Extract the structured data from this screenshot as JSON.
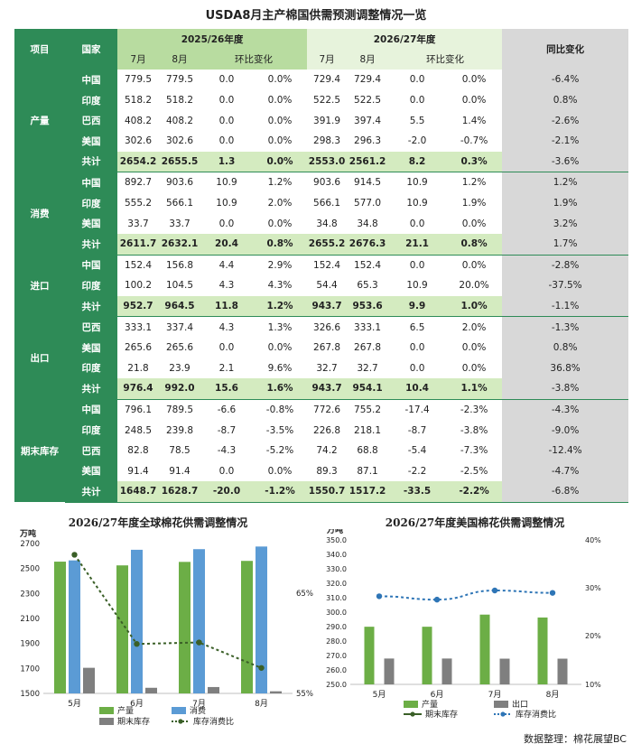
{
  "title": "USDA8月主产棉国供需预测调整情况一览",
  "table": {
    "col_item": "项目",
    "col_country": "国家",
    "period1": "2025/26年度",
    "period2": "2026/27年度",
    "yoy": "同比变化",
    "sub": [
      "7月",
      "8月",
      "环比变化",
      "7月",
      "8月",
      "环比变化"
    ],
    "groups": [
      {
        "name": "产量",
        "rows": [
          {
            "c": "中国",
            "v": [
              "779.5",
              "779.5",
              "0.0",
              "0.0%",
              "729.4",
              "729.4",
              "0.0",
              "0.0%",
              "-6.4%"
            ]
          },
          {
            "c": "印度",
            "v": [
              "518.2",
              "518.2",
              "0.0",
              "0.0%",
              "522.5",
              "522.5",
              "0.0",
              "0.0%",
              "0.8%"
            ]
          },
          {
            "c": "巴西",
            "v": [
              "408.2",
              "408.2",
              "0.0",
              "0.0%",
              "391.9",
              "397.4",
              "5.5",
              "1.4%",
              "-2.6%"
            ]
          },
          {
            "c": "美国",
            "v": [
              "302.6",
              "302.6",
              "0.0",
              "0.0%",
              "298.3",
              "296.3",
              "-2.0",
              "-0.7%",
              "-2.1%"
            ]
          },
          {
            "c": "共计",
            "v": [
              "2654.2",
              "2655.5",
              "1.3",
              "0.0%",
              "2553.0",
              "2561.2",
              "8.2",
              "0.3%",
              "-3.6%"
            ],
            "total": true
          }
        ]
      },
      {
        "name": "消费",
        "rows": [
          {
            "c": "中国",
            "v": [
              "892.7",
              "903.6",
              "10.9",
              "1.2%",
              "903.6",
              "914.5",
              "10.9",
              "1.2%",
              "1.2%"
            ]
          },
          {
            "c": "印度",
            "v": [
              "555.2",
              "566.1",
              "10.9",
              "2.0%",
              "566.1",
              "577.0",
              "10.9",
              "1.9%",
              "1.9%"
            ]
          },
          {
            "c": "美国",
            "v": [
              "33.7",
              "33.7",
              "0.0",
              "0.0%",
              "34.8",
              "34.8",
              "0.0",
              "0.0%",
              "3.2%"
            ]
          },
          {
            "c": "共计",
            "v": [
              "2611.7",
              "2632.1",
              "20.4",
              "0.8%",
              "2655.2",
              "2676.3",
              "21.1",
              "0.8%",
              "1.7%"
            ],
            "total": true
          }
        ]
      },
      {
        "name": "进口",
        "rows": [
          {
            "c": "中国",
            "v": [
              "152.4",
              "156.8",
              "4.4",
              "2.9%",
              "152.4",
              "152.4",
              "0.0",
              "0.0%",
              "-2.8%"
            ]
          },
          {
            "c": "印度",
            "v": [
              "100.2",
              "104.5",
              "4.3",
              "4.3%",
              "54.4",
              "65.3",
              "10.9",
              "20.0%",
              "-37.5%"
            ]
          },
          {
            "c": "共计",
            "v": [
              "952.7",
              "964.5",
              "11.8",
              "1.2%",
              "943.7",
              "953.6",
              "9.9",
              "1.0%",
              "-1.1%"
            ],
            "total": true
          }
        ]
      },
      {
        "name": "出口",
        "rows": [
          {
            "c": "巴西",
            "v": [
              "333.1",
              "337.4",
              "4.3",
              "1.3%",
              "326.6",
              "333.1",
              "6.5",
              "2.0%",
              "-1.3%"
            ]
          },
          {
            "c": "美国",
            "v": [
              "265.6",
              "265.6",
              "0.0",
              "0.0%",
              "267.8",
              "267.8",
              "0.0",
              "0.0%",
              "0.8%"
            ]
          },
          {
            "c": "印度",
            "v": [
              "21.8",
              "23.9",
              "2.1",
              "9.6%",
              "32.7",
              "32.7",
              "0.0",
              "0.0%",
              "36.8%"
            ]
          },
          {
            "c": "共计",
            "v": [
              "976.4",
              "992.0",
              "15.6",
              "1.6%",
              "943.7",
              "954.1",
              "10.4",
              "1.1%",
              "-3.8%"
            ],
            "total": true
          }
        ]
      },
      {
        "name": "期末库存",
        "rows": [
          {
            "c": "中国",
            "v": [
              "796.1",
              "789.5",
              "-6.6",
              "-0.8%",
              "772.6",
              "755.2",
              "-17.4",
              "-2.3%",
              "-4.3%"
            ]
          },
          {
            "c": "印度",
            "v": [
              "248.5",
              "239.8",
              "-8.7",
              "-3.5%",
              "226.8",
              "218.1",
              "-8.7",
              "-3.8%",
              "-9.0%"
            ]
          },
          {
            "c": "巴西",
            "v": [
              "82.8",
              "78.5",
              "-4.3",
              "-5.2%",
              "74.2",
              "68.8",
              "-5.4",
              "-7.3%",
              "-12.4%"
            ]
          },
          {
            "c": "美国",
            "v": [
              "91.4",
              "91.4",
              "0.0",
              "0.0%",
              "89.3",
              "87.1",
              "-2.2",
              "-2.5%",
              "-4.7%"
            ]
          },
          {
            "c": "共计",
            "v": [
              "1648.7",
              "1628.7",
              "-20.0",
              "-1.2%",
              "1550.7",
              "1517.2",
              "-33.5",
              "-2.2%",
              "-6.8%"
            ],
            "total": true
          }
        ]
      }
    ]
  },
  "chart_data": [
    {
      "type": "bar",
      "title": "2026/27年度全球棉花供需调整情况",
      "ylabel": "万吨",
      "categories": [
        "5月",
        "6月",
        "7月",
        "8月"
      ],
      "ylim": [
        1500,
        2700
      ],
      "yticks": [
        1500,
        1700,
        1900,
        2100,
        2300,
        2500,
        2700
      ],
      "y2lim": [
        0.55,
        0.65
      ],
      "y2ticks": [
        "55%",
        "65%"
      ],
      "series": [
        {
          "name": "产量",
          "values": [
            2555,
            2525,
            2553,
            2561
          ],
          "color": "#6cae46"
        },
        {
          "name": "消费",
          "values": [
            2565,
            2650,
            2655,
            2676
          ],
          "color": "#5b9bd5"
        },
        {
          "name": "期末库存",
          "values": [
            1705,
            1545,
            1551,
            1517
          ],
          "color": "#7f7f7f"
        },
        {
          "name": "库存消费比",
          "values": [
            0.6425,
            0.583,
            0.584,
            0.567
          ],
          "color": "#3a5f27",
          "type": "line",
          "axis": "right"
        }
      ],
      "legend": "bottom"
    },
    {
      "type": "bar",
      "title": "2026/27年度美国棉花供需调整情况",
      "ylabel": "万吨",
      "categories": [
        "5月",
        "6月",
        "7月",
        "8月"
      ],
      "ylim": [
        250,
        350
      ],
      "yticks": [
        "250.0",
        "260.0",
        "270.0",
        "280.0",
        "290.0",
        "300.0",
        "310.0",
        "320.0",
        "330.0",
        "340.0",
        "350.0"
      ],
      "y2lim": [
        0.1,
        0.4
      ],
      "y2ticks": [
        "10%",
        "20%",
        "30%",
        "40%"
      ],
      "series": [
        {
          "name": "产量",
          "values": [
            289.9,
            289.9,
            298.3,
            296.3
          ],
          "color": "#6cae46"
        },
        {
          "name": "出口",
          "values": [
            267.9,
            267.9,
            267.8,
            267.8
          ],
          "color": "#7f7f7f"
        },
        {
          "name": "期末库存",
          "values": [
            0,
            0,
            0,
            0
          ],
          "color": "#3a5f27",
          "type": "line-legend"
        },
        {
          "name": "库存消费比",
          "values": [
            0.283,
            0.276,
            0.295,
            0.29
          ],
          "color": "#2e75b6",
          "type": "line",
          "axis": "right"
        }
      ],
      "legend": "bottom"
    }
  ],
  "source": "数据整理：棉花展望BC"
}
